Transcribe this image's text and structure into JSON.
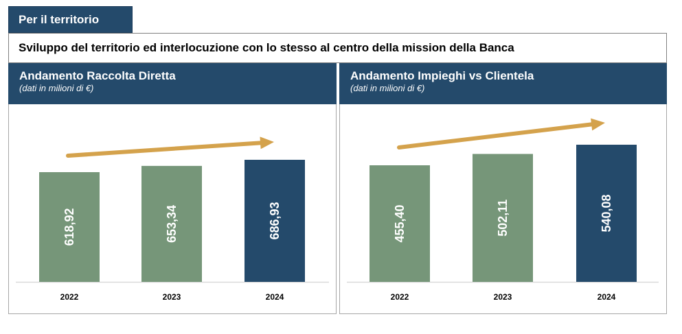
{
  "header": {
    "section_label": "Per il territorio",
    "mission_text": "Sviluppo del territorio ed interlocuzione con lo stesso al centro della mission della Banca"
  },
  "colors": {
    "navy": "#244a6b",
    "green": "#769679",
    "arrow": "#d4a24c"
  },
  "chart_data": [
    {
      "type": "bar",
      "title": "Andamento Raccolta Diretta",
      "subtitle": "(dati in milioni di €)",
      "categories": [
        "2022",
        "2023",
        "2024"
      ],
      "values": [
        618.92,
        653.34,
        686.93
      ],
      "value_labels": [
        "618,92",
        "653,34",
        "686,93"
      ],
      "bar_colors": [
        "#769679",
        "#769679",
        "#244a6b"
      ],
      "trend_arrow": true
    },
    {
      "type": "bar",
      "title": "Andamento Impieghi vs Clientela",
      "subtitle": "(dati in milioni di €)",
      "categories": [
        "2022",
        "2023",
        "2024"
      ],
      "values": [
        455.4,
        502.11,
        540.08
      ],
      "value_labels": [
        "455,40",
        "502,11",
        "540,08"
      ],
      "bar_colors": [
        "#769679",
        "#769679",
        "#244a6b"
      ],
      "trend_arrow": true
    }
  ]
}
